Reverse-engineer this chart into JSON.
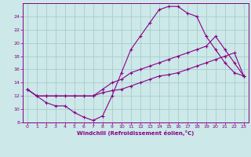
{
  "xlabel": "Windchill (Refroidissement éolien,°C)",
  "bg_color": "#cce8e8",
  "line_color": "#880088",
  "grid_color": "#aacccc",
  "xlim": [
    -0.5,
    23.5
  ],
  "ylim": [
    8,
    26
  ],
  "xticks": [
    0,
    1,
    2,
    3,
    4,
    5,
    6,
    7,
    8,
    9,
    10,
    11,
    12,
    13,
    14,
    15,
    16,
    17,
    18,
    19,
    20,
    21,
    22,
    23
  ],
  "yticks": [
    8,
    10,
    12,
    14,
    16,
    18,
    20,
    22,
    24
  ],
  "line1_x": [
    0,
    1,
    2,
    3,
    4,
    5,
    6,
    7,
    8,
    9,
    10,
    11,
    12,
    13,
    14,
    15,
    16,
    17,
    18,
    19,
    20,
    21,
    22,
    23
  ],
  "line1_y": [
    13,
    12,
    11,
    10.5,
    10.5,
    9.5,
    8.8,
    8.3,
    9,
    12,
    15.5,
    19,
    21,
    23,
    25,
    25.5,
    25.5,
    24.5,
    24,
    21,
    19,
    17,
    15.5,
    15
  ],
  "line2_x": [
    0,
    1,
    2,
    3,
    4,
    5,
    6,
    7,
    8,
    9,
    10,
    11,
    12,
    13,
    14,
    15,
    16,
    17,
    18,
    19,
    20,
    21,
    22,
    23
  ],
  "line2_y": [
    13,
    12,
    12,
    12,
    12,
    12,
    12,
    12,
    13,
    14,
    14.5,
    15.5,
    16,
    16.5,
    17,
    17.5,
    18,
    18.5,
    19,
    19.5,
    21,
    19,
    17,
    15
  ],
  "line3_x": [
    0,
    1,
    2,
    3,
    4,
    5,
    6,
    7,
    8,
    9,
    10,
    11,
    12,
    13,
    14,
    15,
    16,
    17,
    18,
    19,
    20,
    21,
    22,
    23
  ],
  "line3_y": [
    13,
    12,
    12,
    12,
    12,
    12,
    12,
    12,
    12.5,
    12.8,
    13,
    13.5,
    14,
    14.5,
    15,
    15.2,
    15.5,
    16,
    16.5,
    17,
    17.5,
    18,
    18.5,
    15
  ]
}
